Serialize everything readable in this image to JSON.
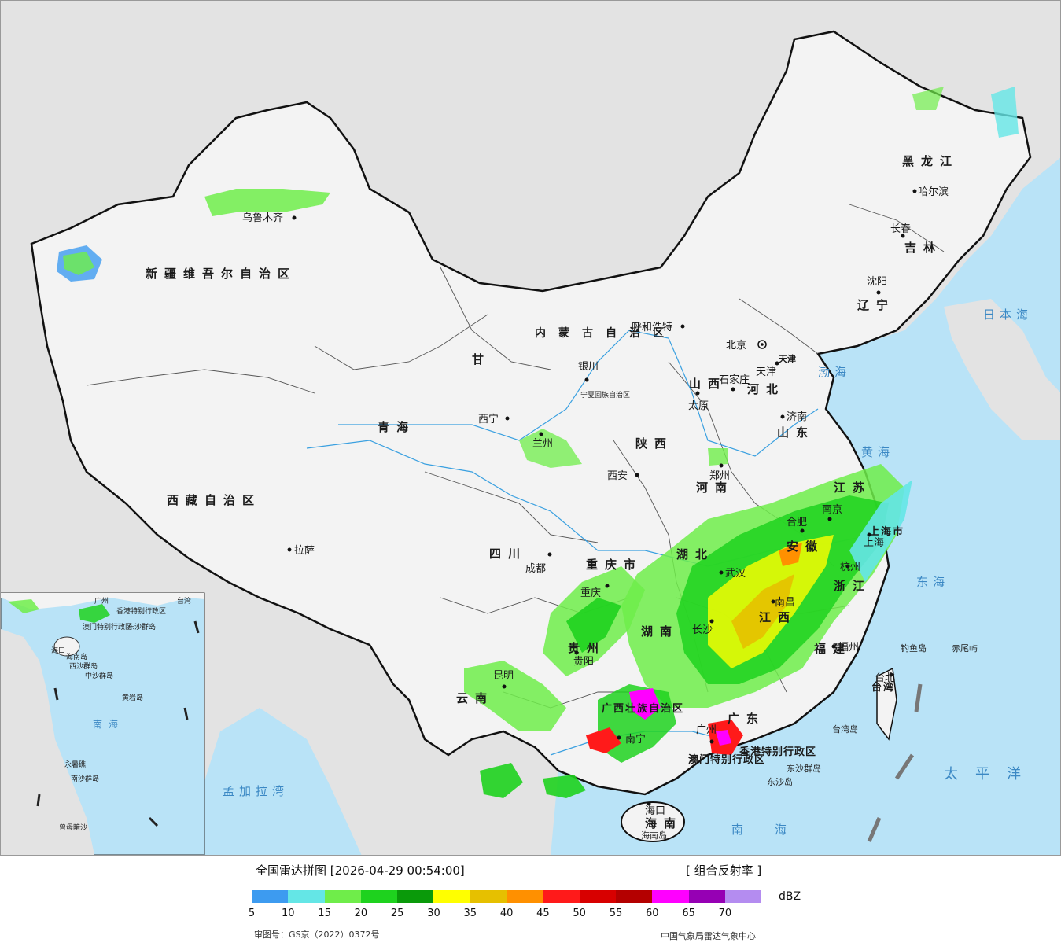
{
  "map": {
    "provinces": [
      {
        "id": "xinjiang",
        "name": "新疆维吾尔自治区"
      },
      {
        "id": "xizang",
        "name": "西藏自治区"
      },
      {
        "id": "qinghai",
        "name": "青海"
      },
      {
        "id": "gansu",
        "name": "甘"
      },
      {
        "id": "sichuan",
        "name": "四川"
      },
      {
        "id": "yunnan",
        "name": "云南"
      },
      {
        "id": "guizhou",
        "name": "贵州"
      },
      {
        "id": "chongqing",
        "name": "重庆市"
      },
      {
        "id": "shaanxi",
        "name": "陕西"
      },
      {
        "id": "shanxi",
        "name": "山西"
      },
      {
        "id": "henan",
        "name": "河南"
      },
      {
        "id": "hubei",
        "name": "湖北"
      },
      {
        "id": "hunan",
        "name": "湖南"
      },
      {
        "id": "jiangxi",
        "name": "江西"
      },
      {
        "id": "fujian",
        "name": "福建"
      },
      {
        "id": "guangdong",
        "name": "广东"
      },
      {
        "id": "guangxi",
        "name": "广西壮族自治区"
      },
      {
        "id": "hainan",
        "name": "海南"
      },
      {
        "id": "zhejiang",
        "name": "浙江"
      },
      {
        "id": "anhui",
        "name": "安徽"
      },
      {
        "id": "jiangsu",
        "name": "江苏"
      },
      {
        "id": "shandong",
        "name": "山东"
      },
      {
        "id": "hebei",
        "name": "河北"
      },
      {
        "id": "liaoning",
        "name": "辽宁"
      },
      {
        "id": "jilin",
        "name": "吉林"
      },
      {
        "id": "heilongjiang",
        "name": "黑龙江"
      },
      {
        "id": "neimenggu",
        "name": "内蒙古自治区"
      },
      {
        "id": "ningxia",
        "name": "宁夏回族自治区"
      },
      {
        "id": "taiwan",
        "name": "台湾"
      },
      {
        "id": "shanghai",
        "name": "上海市"
      },
      {
        "id": "hongkong",
        "name": "香港特别行政区"
      },
      {
        "id": "macau",
        "name": "澳门特别行政区"
      },
      {
        "id": "tianjin",
        "name": "天津"
      }
    ],
    "cities": [
      {
        "name": "乌鲁木齐"
      },
      {
        "name": "拉萨"
      },
      {
        "name": "西宁"
      },
      {
        "name": "兰州"
      },
      {
        "name": "银川"
      },
      {
        "name": "呼和浩特"
      },
      {
        "name": "北京"
      },
      {
        "name": "天津"
      },
      {
        "name": "石家庄"
      },
      {
        "name": "太原"
      },
      {
        "name": "济南"
      },
      {
        "name": "郑州"
      },
      {
        "name": "西安"
      },
      {
        "name": "成都"
      },
      {
        "name": "重庆"
      },
      {
        "name": "贵阳"
      },
      {
        "name": "昆明"
      },
      {
        "name": "南宁"
      },
      {
        "name": "广州"
      },
      {
        "name": "海口"
      },
      {
        "name": "武汉"
      },
      {
        "name": "长沙"
      },
      {
        "name": "南昌"
      },
      {
        "name": "福州"
      },
      {
        "name": "杭州"
      },
      {
        "name": "合肥"
      },
      {
        "name": "南京"
      },
      {
        "name": "上海"
      },
      {
        "name": "台北"
      },
      {
        "name": "沈阳"
      },
      {
        "name": "长春"
      },
      {
        "name": "哈尔滨"
      }
    ],
    "seas": [
      {
        "name": "日本海"
      },
      {
        "name": "渤海"
      },
      {
        "name": "黄海"
      },
      {
        "name": "东海"
      },
      {
        "name": "南海"
      },
      {
        "name": "太平洋"
      },
      {
        "name": "孟加拉湾"
      }
    ],
    "islands": [
      {
        "name": "钓鱼岛"
      },
      {
        "name": "赤尾屿"
      },
      {
        "name": "东沙群岛"
      },
      {
        "name": "东沙岛"
      },
      {
        "name": "海南岛"
      },
      {
        "name": "台湾岛"
      }
    ],
    "inset": {
      "labels": [
        "海口",
        "海南岛",
        "西沙群岛",
        "中沙群岛",
        "黄岩岛",
        "南海",
        "南沙群岛",
        "永暑礁",
        "曾母暗沙",
        "东沙群岛",
        "香港特别行政区",
        "澳门特别行政区",
        "广州",
        "台湾"
      ]
    }
  },
  "legend": {
    "title": "全国雷达拼图 [2026-04-29 00:54:00]",
    "product": "[ 组合反射率 ]",
    "unit": "dBZ",
    "colors": [
      "#3d9bf0",
      "#64e6e6",
      "#6fed4a",
      "#1ed21e",
      "#0a9a0a",
      "#ffff00",
      "#e6c000",
      "#ff9000",
      "#ff1a1a",
      "#d80000",
      "#b40000",
      "#ff00ff",
      "#9600b4",
      "#b48cf0"
    ],
    "ticks": [
      "5",
      "10",
      "15",
      "20",
      "25",
      "30",
      "35",
      "40",
      "45",
      "50",
      "55",
      "60",
      "65",
      "70"
    ],
    "approval": "审图号：GS京（2022）0372号",
    "agency": "中国气象局雷达气象中心"
  }
}
